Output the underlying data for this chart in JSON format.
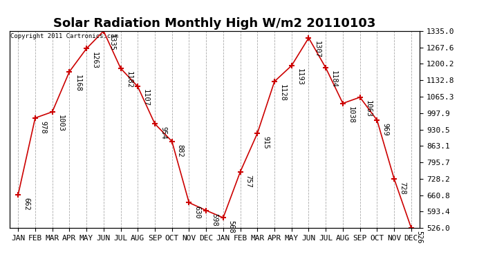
{
  "title": "Solar Radiation Monthly High W/m2 20110103",
  "copyright_text": "Copyright 2011 Cartronics.com",
  "categories": [
    "JAN",
    "FEB",
    "MAR",
    "APR",
    "MAY",
    "JUN",
    "JUL",
    "AUG",
    "SEP",
    "OCT",
    "NOV",
    "DEC",
    "JAN",
    "FEB",
    "MAR",
    "APR",
    "MAY",
    "JUN",
    "JUL",
    "AUG",
    "SEP",
    "OCT",
    "NOV",
    "DEC"
  ],
  "values": [
    662,
    978,
    1003,
    1168,
    1263,
    1335,
    1182,
    1107,
    954,
    882,
    630,
    598,
    568,
    757,
    915,
    1128,
    1193,
    1307,
    1184,
    1038,
    1063,
    969,
    728,
    526
  ],
  "line_color": "#cc0000",
  "marker_color": "#cc0000",
  "bg_color": "#ffffff",
  "grid_color": "#aaaaaa",
  "ylim_min": 526.0,
  "ylim_max": 1335.0,
  "yticks": [
    526.0,
    593.4,
    660.8,
    728.2,
    795.7,
    863.1,
    930.5,
    997.9,
    1065.3,
    1132.8,
    1200.2,
    1267.6,
    1335.0
  ],
  "title_fontsize": 13,
  "tick_fontsize": 8,
  "annotation_fontsize": 7.5
}
